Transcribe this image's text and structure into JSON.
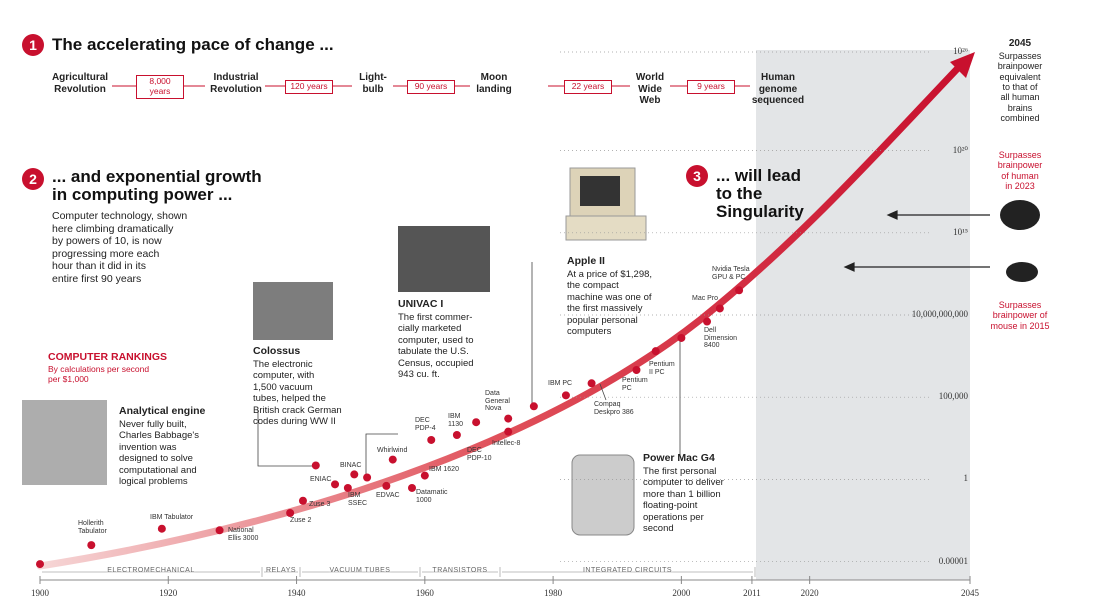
{
  "chart_data": {
    "type": "scatter",
    "log_y": true,
    "color": "#c8102e",
    "xlim": [
      1900,
      2045
    ],
    "ylim": [
      1e-06,
      1e+26
    ],
    "xticks": [
      1900,
      1920,
      1940,
      1960,
      1980,
      2000,
      2011,
      2020,
      2045
    ],
    "yticks": [
      {
        "value": 1e-05,
        "label": "0.00001"
      },
      1,
      {
        "value": 100000,
        "label": "100,000"
      },
      {
        "value": 10000000000,
        "label": "10,000,000,000"
      },
      {
        "value": 1000000000000000.0,
        "label": "10¹⁵"
      },
      {
        "value": 1e+20,
        "label": "10²⁰"
      },
      {
        "value": 1e+26,
        "label": "10²⁶"
      }
    ],
    "grid": true,
    "x": [
      1900,
      1908,
      1919,
      1928,
      1939,
      1941,
      1943,
      1946,
      1948,
      1949,
      1951,
      1954,
      1955,
      1958,
      1960,
      1961,
      1965,
      1968,
      1973,
      1973,
      1977,
      1982,
      1986,
      1993,
      1996,
      2000,
      2004,
      2006,
      2009
    ],
    "values": [
      7e-06,
      0.0001,
      0.001,
      0.0008,
      0.009,
      0.05,
      7,
      0.5,
      0.3,
      2,
      1.3,
      0.4,
      16,
      0.3,
      1.7,
      250,
      500,
      3000,
      800,
      5000,
      28000,
      130000,
      700000,
      4500000,
      63000000,
      400000000,
      4000000000,
      25000000000,
      320000000000
    ],
    "labels": [
      null,
      "Hollerith\nTabulator",
      "IBM Tabulator",
      "National\nEllis 3000",
      "Zuse 2",
      "Zuse 3",
      null,
      "ENIAC",
      "IBM\nSSEC",
      "BINAC",
      null,
      "EDVAC",
      "Whirlwind",
      "Datamatic\n1000",
      "IBM 1620",
      "DEC\nPDP-4",
      "IBM\n1130",
      "DEC\nPDP-10",
      "Intellec-8",
      "Data\nGeneral\nNova",
      null,
      "IBM PC",
      "Compaq\nDeskpro 386",
      "Pentium\nPC",
      "Pentium\nII PC",
      null,
      "Dell\nDimension\n8400",
      "Mac Pro",
      "Nvidia Tesla\nGPU & PC"
    ],
    "sections": [
      {
        "number": "1",
        "title": "The accelerating pace of change ..."
      },
      {
        "number": "2",
        "title": "... and exponential growth\nin computing power ...",
        "text": "Computer technology, shown\nhere climbing dramatically\nby powers of 10, is now\nprogressing more each\nhour than it did in its\nentire first 90 years"
      },
      {
        "number": "3",
        "title": "... will lead\nto the\nSingularity"
      }
    ],
    "milestones": [
      "Agricultural\nRevolution",
      "Industrial\nRevolution",
      "Light-\nbulb",
      "Moon\nlanding",
      "World\nWide\nWeb",
      "Human\ngenome\nsequenced"
    ],
    "intervals": [
      "8,000\nyears",
      "120 years",
      "90 years",
      "22 years",
      "9 years"
    ],
    "rankings_title": "COMPUTER RANKINGS",
    "rankings_subtitle": "By calculations per second\nper $1,000",
    "callouts": [
      {
        "title": "Analytical engine",
        "text": "Never fully built,\nCharles Babbage's\ninvention was\ndesigned to solve\ncomputational and\nlogical problems"
      },
      {
        "title": "Colossus",
        "text": "The electronic\ncomputer, with\n1,500 vacuum\ntubes, helped the\nBritish crack German\ncodes during WW II"
      },
      {
        "title": "UNIVAC I",
        "text": "The first commer-\ncially marketed\ncomputer, used to\ntabulate the U.S.\nCensus, occupied\n943 cu. ft."
      },
      {
        "title": "Apple II",
        "text": "At a price of $1,298,\nthe compact\nmachine was one of\nthe first massively\npopular personal\ncomputers"
      },
      {
        "title": "Power Mac G4",
        "text": "The first personal\ncomputer to deliver\nmore than 1 billion\nfloating-point\noperations per\nsecond"
      }
    ],
    "notes": [
      {
        "title": "2045",
        "text": "Surpasses\nbrainpower\nequivalent\nto that of\nall human\nbrains\ncombined"
      },
      {
        "text": "Surpasses\nbrainpower\nof human\nin 2023"
      },
      {
        "text": "Surpasses\nbrainpower of\nmouse in 2015"
      }
    ],
    "eras": [
      "ELECTROMECHANICAL",
      "RELAYS",
      "VACUUM TUBES",
      "TRANSISTORS",
      "INTEGRATED CIRCUITS"
    ]
  }
}
